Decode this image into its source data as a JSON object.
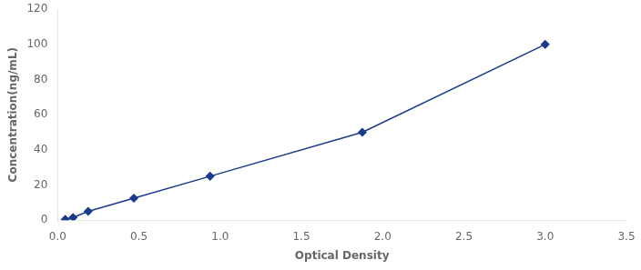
{
  "chart_data": {
    "type": "line",
    "x": [
      0.047,
      0.095,
      0.188,
      0.469,
      0.938,
      1.875,
      3.0
    ],
    "values": [
      0.5,
      1.5,
      5.0,
      12.5,
      25.0,
      50.0,
      100.0
    ],
    "color": "#1a3a8c",
    "marker": "diamond",
    "line_style": "solid",
    "xlabel": "Optical Density",
    "ylabel": "Concentration(ng/mL)",
    "xlim": [
      0,
      3.5
    ],
    "ylim": [
      0,
      120
    ],
    "xticks": [
      {
        "value": 0,
        "label": "0.0"
      },
      0.5,
      {
        "value": 1,
        "label": "1.0"
      },
      1.5,
      {
        "value": 2,
        "label": "2.0"
      },
      2.5,
      {
        "value": 3,
        "label": "3.0"
      },
      3.5
    ],
    "yticks": [
      0,
      20,
      40,
      60,
      80,
      100,
      120
    ],
    "grid": false
  }
}
